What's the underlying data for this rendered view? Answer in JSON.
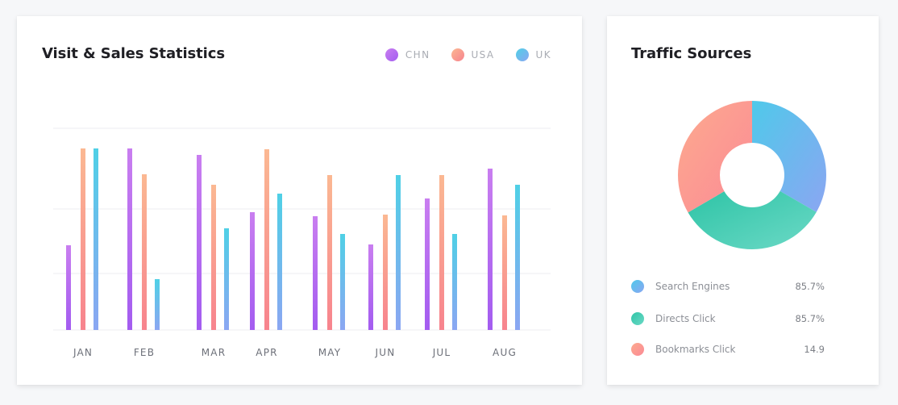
{
  "visits_card": {
    "title": "Visit & Sales Statistics",
    "legend": [
      {
        "label": "CHN",
        "color_top": "#c97ef0",
        "color_bottom": "#a35cf0"
      },
      {
        "label": "USA",
        "color_top": "#fbb892",
        "color_bottom": "#f7838e"
      },
      {
        "label": "UK",
        "color_top": "#4fd0e6",
        "color_bottom": "#8ba6f2"
      }
    ]
  },
  "chart_data": [
    {
      "type": "bar",
      "title": "Visit & Sales Statistics",
      "categories": [
        "JAN",
        "FEB",
        "MAR",
        "APR",
        "MAY",
        "JUN",
        "JUL",
        "AUG"
      ],
      "series": [
        {
          "name": "CHN",
          "values": [
            105,
            225,
            217,
            146,
            141,
            106,
            163,
            200
          ]
        },
        {
          "name": "USA",
          "values": [
            225,
            193,
            180,
            224,
            192,
            143,
            192,
            142
          ]
        },
        {
          "name": "UK",
          "values": [
            225,
            63,
            126,
            169,
            119,
            192,
            119,
            180
          ]
        }
      ],
      "ylim": [
        0,
        250
      ],
      "grid": true,
      "legend_position": "top-right"
    },
    {
      "type": "pie",
      "title": "Traffic Sources",
      "labels": [
        "Search Engines",
        "Directs Click",
        "Bookmarks Click"
      ],
      "values": [
        33.3,
        33.3,
        33.4
      ],
      "donut": true
    }
  ],
  "traffic_card": {
    "title": "Traffic Sources",
    "sources": [
      {
        "label": "Search Engines",
        "value": "85.7%",
        "color_a": "#4fc9ea",
        "color_b": "#8ba6f2"
      },
      {
        "label": "Directs Click",
        "value": "85.7%",
        "color_a": "#2ec4a6",
        "color_b": "#6cd9c6"
      },
      {
        "label": "Bookmarks Click",
        "value": "14.9",
        "color_a": "#fcaa8e",
        "color_b": "#fb8a96"
      }
    ]
  }
}
